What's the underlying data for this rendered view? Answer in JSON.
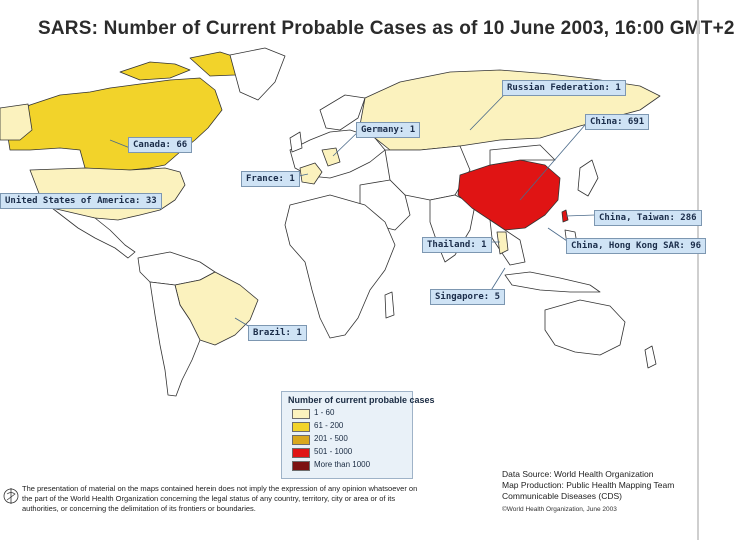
{
  "title": "SARS: Number of Current Probable Cases as of 10 June 2003, 16:00 GMT+2",
  "callouts": {
    "russia": "Russian Federation: 1",
    "china": "China: 691",
    "germany": "Germany: 1",
    "canada": "Canada: 66",
    "france": "France: 1",
    "usa": "United States of America: 33",
    "taiwan": "China, Taiwan: 286",
    "thailand": "Thailand: 1",
    "hongkong": "China, Hong Kong SAR: 96",
    "singapore": "Singapore: 5",
    "brazil": "Brazil: 1"
  },
  "legend": {
    "title": "Number of current probable cases",
    "items": [
      {
        "label": "1 - 60",
        "color": "#fbf2be"
      },
      {
        "label": "61 - 200",
        "color": "#f2d32a"
      },
      {
        "label": "201 - 500",
        "color": "#d9a81e"
      },
      {
        "label": "501 - 1000",
        "color": "#e01414"
      },
      {
        "label": "More than 1000",
        "color": "#7d1212"
      }
    ]
  },
  "source": {
    "line1": "Data Source: World Health Organization",
    "line2": "Map Production: Public Health Mapping Team",
    "line3": "Communicable Diseases (CDS)"
  },
  "copyright": "©World Health Organization, June 2003",
  "disclaimer": "The presentation of material on the maps contained herein does not imply the expression of any opinion whatsoever on the part of the World Health Organization concerning the legal status of any country, territory, city or area or of its authorities, or concerning the delimitation of its frontiers or boundaries.",
  "colors": {
    "tier1": "#fbf2be",
    "tier2": "#f2d32a",
    "tier4": "#e01414",
    "unaffected": "#ffffff",
    "callout_bg": "#cfe3f5"
  }
}
